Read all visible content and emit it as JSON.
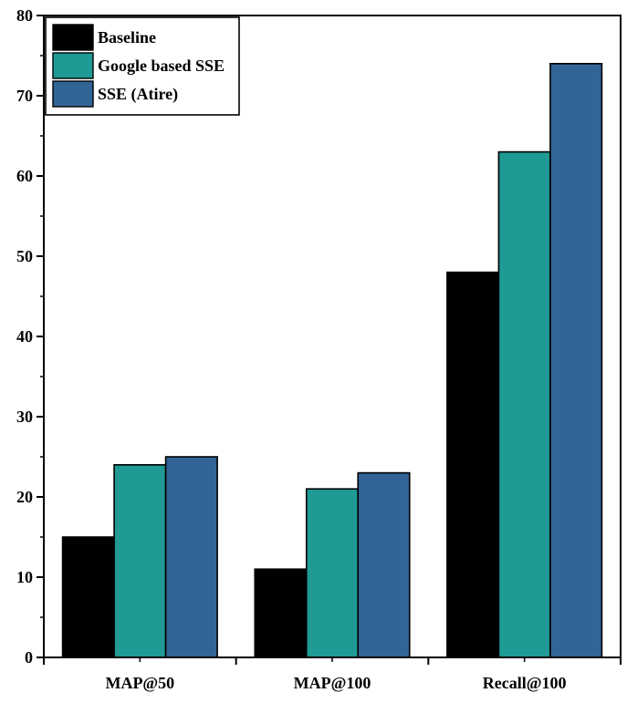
{
  "chart_data": {
    "type": "bar",
    "categories": [
      "MAP@50",
      "MAP@100",
      "Recall@100"
    ],
    "series": [
      {
        "name": "Baseline",
        "values": [
          15,
          11,
          48
        ],
        "color": "#000000"
      },
      {
        "name": "Google based SSE",
        "values": [
          24,
          21,
          63
        ],
        "color": "#1f9a94"
      },
      {
        "name": "SSE (Atire)",
        "values": [
          25,
          23,
          74
        ],
        "color": "#336496"
      }
    ],
    "title": "",
    "xlabel": "",
    "ylabel": "",
    "ylim": [
      0,
      80
    ],
    "yticks": [
      0,
      10,
      20,
      30,
      40,
      50,
      60,
      70,
      80
    ],
    "grid": false,
    "legend": "top-left"
  }
}
